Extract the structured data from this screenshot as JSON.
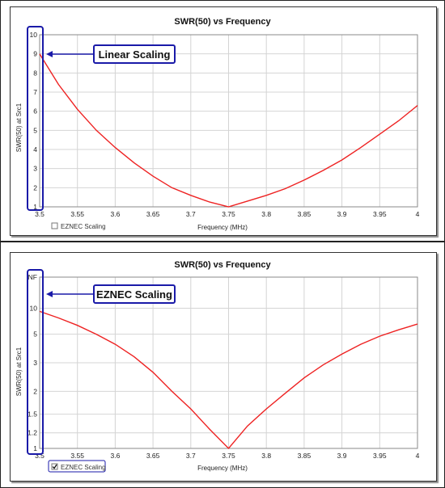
{
  "colors": {
    "curve": "#ee2222",
    "callout_border": "#1a1aa8",
    "grid": "#d4d4d4",
    "arrow": "#1a1aa8"
  },
  "charts": [
    {
      "title": "SWR(50)  vs  Frequency",
      "ylabel": "SWR(50) at Src1",
      "xlabel": "Frequency (MHz)",
      "checkbox_label": "EZNEC Scaling",
      "checkbox_checked": false,
      "callout": "Linear Scaling"
    },
    {
      "title": "SWR(50)  vs  Frequency",
      "ylabel": "SWR(50) at Src1",
      "xlabel": "Frequency (MHz)",
      "checkbox_label": "EZNEC Scaling",
      "checkbox_checked": true,
      "callout": "EZNEC Scaling"
    }
  ],
  "chart_data": [
    {
      "type": "line",
      "title": "SWR(50)  vs  Frequency",
      "xlabel": "Frequency (MHz)",
      "ylabel": "SWR(50) at Src1",
      "xlim": [
        3.5,
        4.0
      ],
      "ylim": [
        1,
        10
      ],
      "scale": "linear",
      "grid": true,
      "x_ticks": [
        "3.5",
        "3.55",
        "3.6",
        "3.65",
        "3.7",
        "3.75",
        "3.8",
        "3.85",
        "3.9",
        "3.95",
        "4"
      ],
      "y_ticks": [
        "1",
        "2",
        "3",
        "4",
        "5",
        "6",
        "7",
        "8",
        "9",
        "10"
      ],
      "series": [
        {
          "x": [
            3.5,
            3.525,
            3.55,
            3.575,
            3.6,
            3.625,
            3.65,
            3.675,
            3.7,
            3.725,
            3.75,
            3.775,
            3.8,
            3.825,
            3.85,
            3.875,
            3.9,
            3.925,
            3.95,
            3.975,
            4.0
          ],
          "values": [
            9.0,
            7.4,
            6.1,
            5.0,
            4.1,
            3.3,
            2.6,
            2.0,
            1.6,
            1.25,
            1.0,
            1.3,
            1.6,
            1.95,
            2.4,
            2.9,
            3.45,
            4.1,
            4.8,
            5.5,
            6.3
          ]
        }
      ]
    },
    {
      "type": "line",
      "title": "SWR(50)  vs  Frequency",
      "xlabel": "Frequency (MHz)",
      "ylabel": "SWR(50) at Src1",
      "xlim": [
        3.5,
        4.0
      ],
      "scale": "EZNEC (reflection-coefficient) scale",
      "grid": true,
      "x_ticks": [
        "3.5",
        "3.55",
        "3.6",
        "3.65",
        "3.7",
        "3.75",
        "3.8",
        "3.85",
        "3.9",
        "3.95",
        "4"
      ],
      "y_ticks": [
        "1",
        "1.2",
        "1.5",
        "2",
        "3",
        "5",
        "10",
        "INF"
      ],
      "series": [
        {
          "x": [
            3.5,
            3.525,
            3.55,
            3.575,
            3.6,
            3.625,
            3.65,
            3.675,
            3.7,
            3.725,
            3.75,
            3.775,
            3.8,
            3.825,
            3.85,
            3.875,
            3.9,
            3.925,
            3.95,
            3.975,
            4.0
          ],
          "values": [
            9.0,
            7.4,
            6.1,
            5.0,
            4.1,
            3.3,
            2.6,
            2.0,
            1.6,
            1.25,
            1.0,
            1.3,
            1.6,
            1.95,
            2.4,
            2.9,
            3.45,
            4.1,
            4.8,
            5.5,
            6.3
          ]
        }
      ]
    }
  ]
}
